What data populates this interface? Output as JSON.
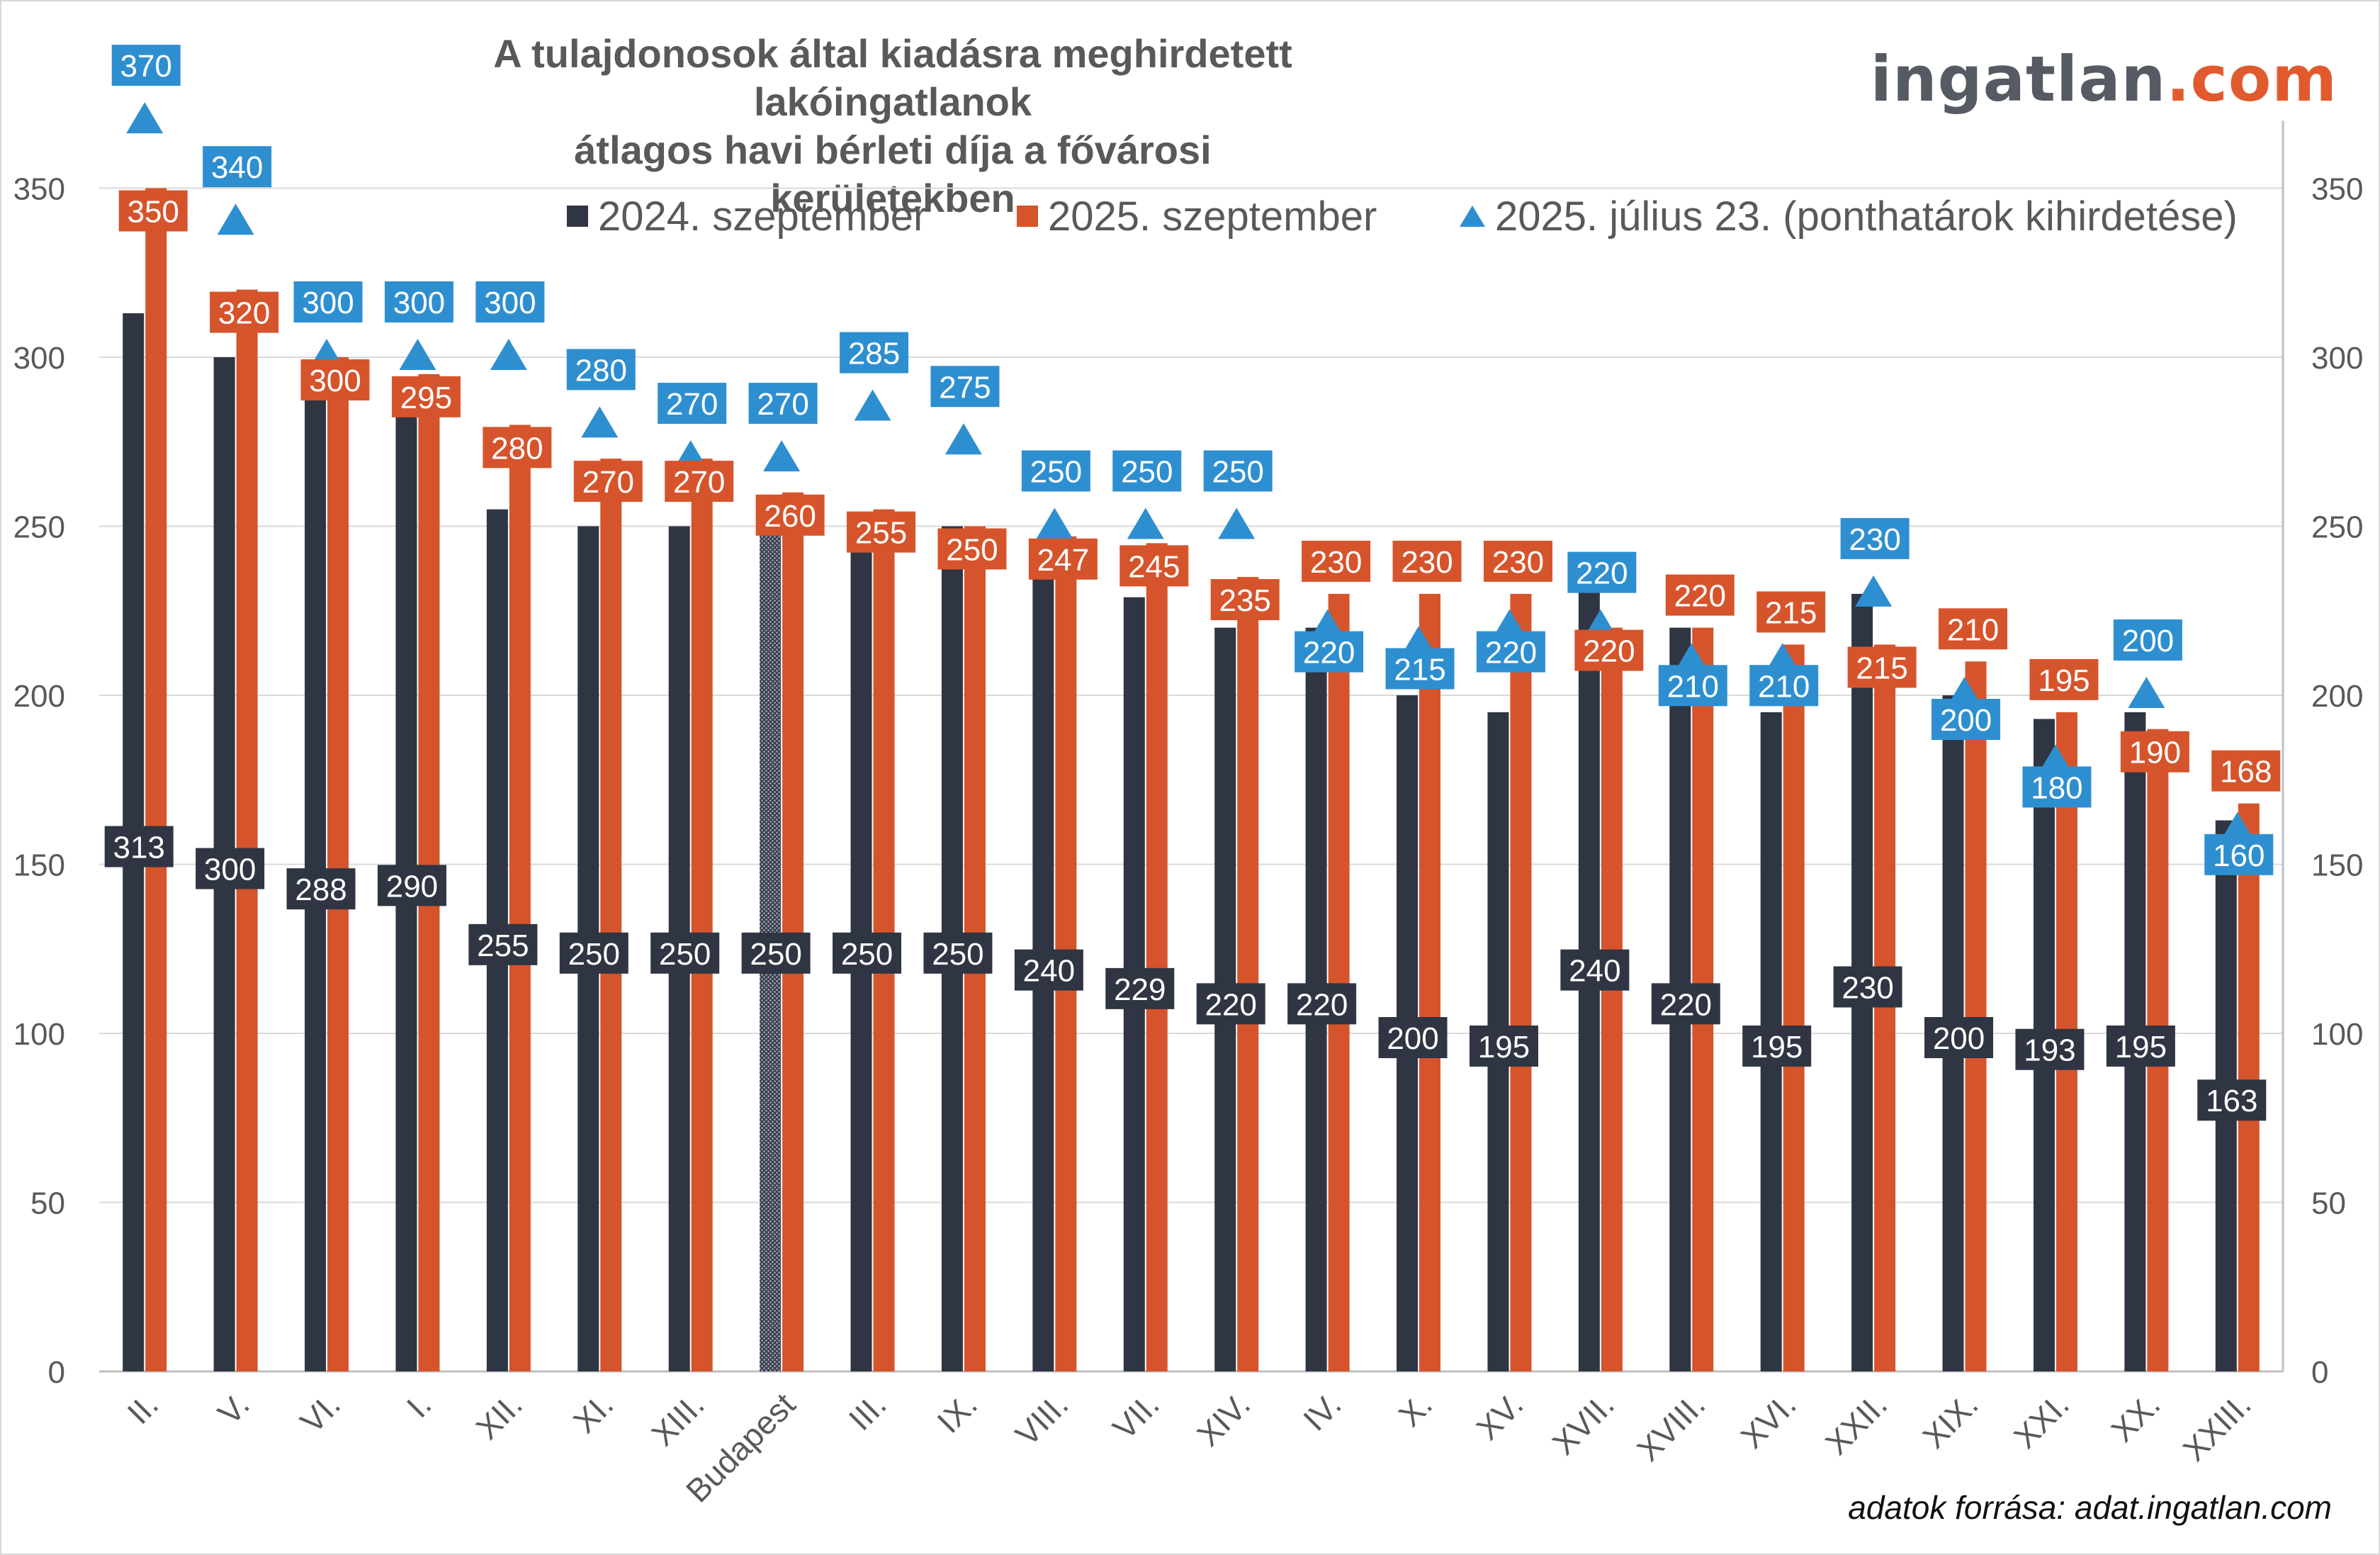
{
  "brand": {
    "part1": "ingatlan",
    "part2": ".com"
  },
  "source_note": "adatok forrása: adat.ingatlan.com",
  "colors": {
    "series_2024": "#2f3542",
    "series_2025": "#d6542b",
    "series_july": "#2e8fd0",
    "grid": "#d9d9d9",
    "axis_text": "#595959"
  },
  "chart_data": {
    "type": "bar",
    "title_line1": "A tulajdonosok által kiadásra meghirdetett lakóingatlanok",
    "title_line2": "átlagos havi bérleti díja a fővárosi kerületekben",
    "xlabel": "",
    "ylabel": "",
    "ylim": [
      0,
      350
    ],
    "yticks": [
      0,
      50,
      100,
      150,
      200,
      250,
      300,
      350
    ],
    "grid": true,
    "secondary_y_axis": true,
    "legend_position": "top",
    "categories": [
      "II.",
      "V.",
      "VI.",
      "I.",
      "XII.",
      "XI.",
      "XIII.",
      "Budapest",
      "III.",
      "IX.",
      "VIII.",
      "VII.",
      "XIV.",
      "IV.",
      "X.",
      "XV.",
      "XVII.",
      "XVIII.",
      "XVI.",
      "XXII.",
      "XIX.",
      "XXI.",
      "XX.",
      "XXIII."
    ],
    "highlight_category": "Budapest",
    "series": [
      {
        "name": "2024. szeptember",
        "type": "bar",
        "values": [
          313,
          300,
          288,
          290,
          255,
          250,
          250,
          250,
          250,
          250,
          240,
          229,
          220,
          220,
          200,
          195,
          240,
          220,
          195,
          230,
          200,
          193,
          195,
          163
        ]
      },
      {
        "name": "2025. szeptember",
        "type": "bar",
        "values": [
          350,
          320,
          300,
          295,
          280,
          270,
          270,
          260,
          255,
          250,
          247,
          245,
          235,
          230,
          230,
          230,
          220,
          220,
          215,
          215,
          210,
          195,
          190,
          168
        ]
      },
      {
        "name": "2025. július 23. (ponthatárok kihirdetése)",
        "type": "marker",
        "values": [
          370,
          340,
          300,
          300,
          300,
          280,
          270,
          270,
          285,
          275,
          250,
          250,
          250,
          220,
          215,
          220,
          220,
          210,
          210,
          230,
          200,
          180,
          200,
          160
        ]
      }
    ]
  }
}
